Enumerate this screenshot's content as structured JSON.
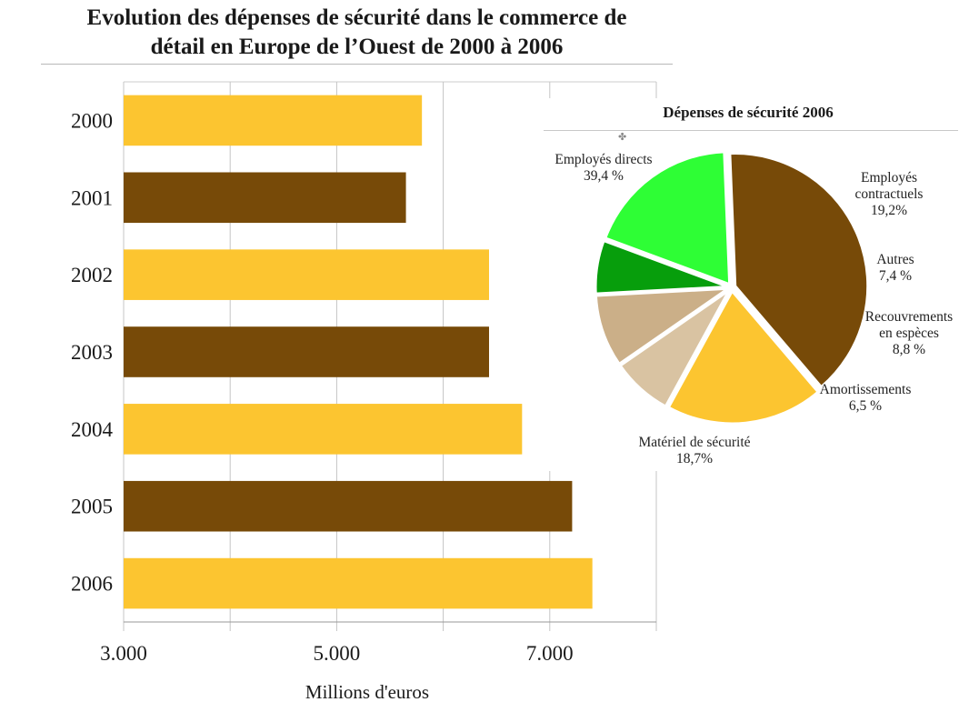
{
  "chart_data": [
    {
      "type": "bar",
      "orientation": "horizontal",
      "title_lines": [
        "Evolution des dépenses de sécurité dans le commerce de",
        "détail en Europe de l’Ouest de 2000 à 2006"
      ],
      "categories": [
        "2000",
        "2001",
        "2002",
        "2003",
        "2004",
        "2005",
        "2006"
      ],
      "values": [
        5800,
        5650,
        6430,
        6430,
        6740,
        7210,
        7400
      ],
      "colors": [
        "#FCC530",
        "#774A08",
        "#FCC530",
        "#774A08",
        "#FCC530",
        "#774A08",
        "#FCC530"
      ],
      "xlabel": "Millions d'euros",
      "xlim": [
        3000,
        8000
      ],
      "xticks": [
        3000,
        5000,
        7000
      ],
      "xtick_labels": [
        "3.000",
        "5.000",
        "7.000"
      ],
      "grid": true
    },
    {
      "type": "pie",
      "title": "Dépenses de sécurité 2006",
      "slices": [
        {
          "lines": [
            "Employés directs",
            "39,4 %"
          ],
          "value": 39.4,
          "color": "#774A08"
        },
        {
          "lines": [
            "Employés",
            "contractuels",
            "19,2%"
          ],
          "value": 19.2,
          "color": "#FCC530"
        },
        {
          "lines": [
            "Autres",
            "7,4 %"
          ],
          "value": 7.4,
          "color": "#D9C3A2"
        },
        {
          "lines": [
            "Recouvrements",
            "en espèces",
            "8,8 %"
          ],
          "value": 8.8,
          "color": "#CBAF88"
        },
        {
          "lines": [
            "Amortissements",
            "6,5 %"
          ],
          "value": 6.5,
          "color": "#079E0C"
        },
        {
          "lines": [
            "Matériel de sécurité",
            "18,7%"
          ],
          "value": 18.7,
          "color": "#2EFE35"
        }
      ]
    }
  ]
}
